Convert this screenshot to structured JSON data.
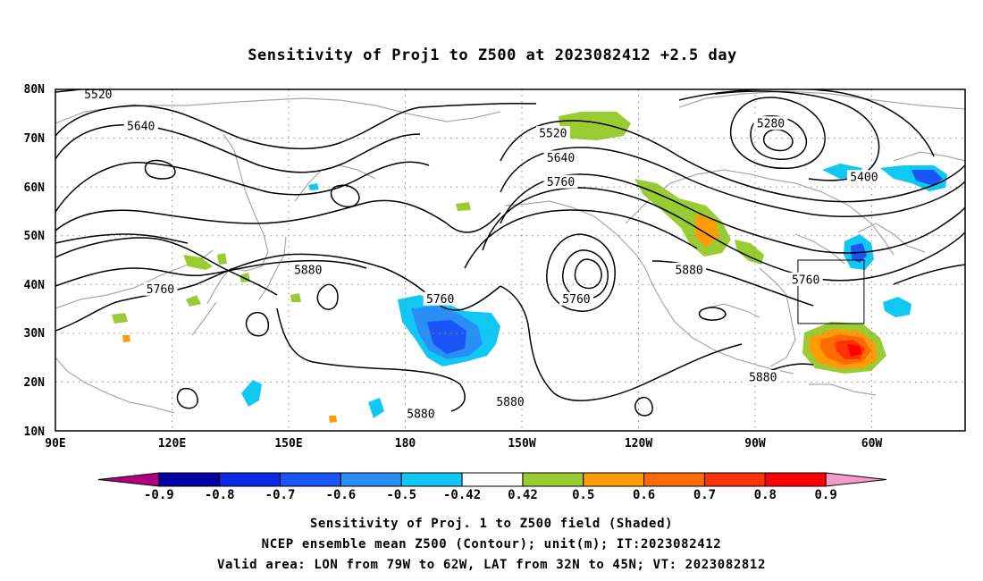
{
  "title": "Sensitivity of Proj1 to Z500 at 2023082412 +2.5 day",
  "map": {
    "lat_ticks": [
      "80N",
      "70N",
      "60N",
      "50N",
      "40N",
      "30N",
      "20N",
      "10N"
    ],
    "lon_ticks": [
      "90E",
      "120E",
      "150E",
      "180",
      "150W",
      "120W",
      "90W",
      "60W"
    ],
    "lon_range": [
      90,
      324
    ],
    "lat_range": [
      10,
      80
    ],
    "valid_box": {
      "lon": [
        -79,
        -62
      ],
      "lat": [
        32,
        45
      ]
    },
    "contour_labels": [
      {
        "text": "5520",
        "lon": 101,
        "lat": 79
      },
      {
        "text": "5640",
        "lon": 112,
        "lat": 72.5
      },
      {
        "text": "5520",
        "lon": 218,
        "lat": 71
      },
      {
        "text": "5280",
        "lon": 274,
        "lat": 73
      },
      {
        "text": "5640",
        "lon": 220,
        "lat": 66
      },
      {
        "text": "5760",
        "lon": 220,
        "lat": 61
      },
      {
        "text": "5400",
        "lon": 298,
        "lat": 62
      },
      {
        "text": "5880",
        "lon": 155,
        "lat": 43
      },
      {
        "text": "5760",
        "lon": 117,
        "lat": 39
      },
      {
        "text": "5760",
        "lon": 189,
        "lat": 37
      },
      {
        "text": "5760",
        "lon": 224,
        "lat": 37
      },
      {
        "text": "5880",
        "lon": 253,
        "lat": 43
      },
      {
        "text": "5760",
        "lon": 283,
        "lat": 41
      },
      {
        "text": "5880",
        "lon": 272,
        "lat": 21
      },
      {
        "text": "5880",
        "lon": 207,
        "lat": 16
      },
      {
        "text": "5880",
        "lon": 184,
        "lat": 13.5
      }
    ],
    "icons": {
      "contours": "z500-contour-lines",
      "shading": "sensitivity-shading",
      "coast": "coastline"
    }
  },
  "colorbar": {
    "labels": [
      "-0.9",
      "-0.8",
      "-0.7",
      "-0.6",
      "-0.5",
      "-0.42",
      "0.42",
      "0.5",
      "0.6",
      "0.7",
      "0.8",
      "0.9"
    ],
    "colors": [
      "#b0007f",
      "#0000a5",
      "#0a2be3",
      "#1c55f5",
      "#2a8ef7",
      "#11c8f5",
      "#ffffff",
      "#99cc33",
      "#ff9b05",
      "#ff6a05",
      "#ff3205",
      "#ff0000",
      "#f29ac9"
    ]
  },
  "footer": [
    "Sensitivity of Proj. 1 to Z500 field (Shaded)",
    "NCEP ensemble mean Z500 (Contour); unit(m); IT:2023082412",
    "Valid area: LON from 79W to 62W, LAT from 32N to 45N; VT: 2023082812"
  ]
}
